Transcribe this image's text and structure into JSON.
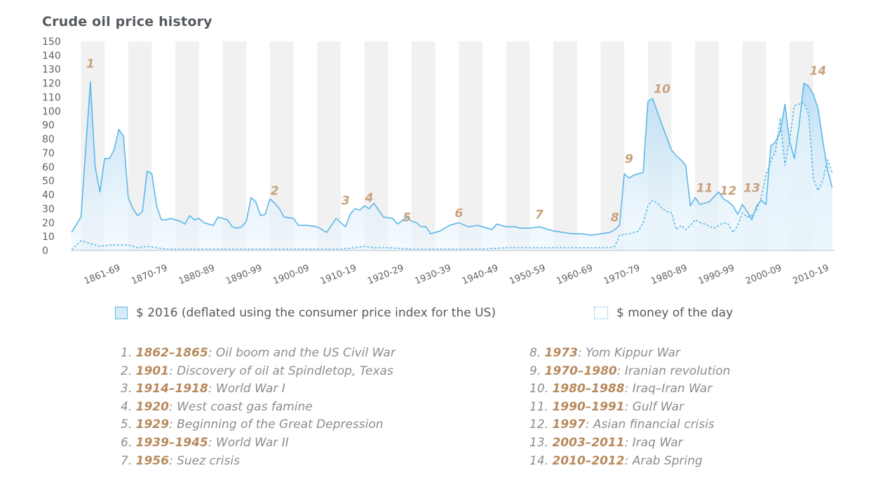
{
  "title": "Crude oil price history",
  "chart_data": {
    "type": "area",
    "title": "Crude oil price history",
    "ylim": [
      0,
      150
    ],
    "yticks": [
      0,
      10,
      20,
      30,
      40,
      50,
      60,
      70,
      80,
      90,
      100,
      110,
      120,
      130,
      140,
      150
    ],
    "xlim": [
      1858,
      2019.5
    ],
    "grid": "alternating vertical bands per 5 years",
    "decades": [
      {
        "label": "1861-69",
        "center": 1865
      },
      {
        "label": "1870-79",
        "center": 1875
      },
      {
        "label": "1880-89",
        "center": 1885
      },
      {
        "label": "1890-99",
        "center": 1895
      },
      {
        "label": "1900-09",
        "center": 1905
      },
      {
        "label": "1910-19",
        "center": 1915
      },
      {
        "label": "1920-29",
        "center": 1925
      },
      {
        "label": "1930-39",
        "center": 1935
      },
      {
        "label": "1940-49",
        "center": 1945
      },
      {
        "label": "1950-59",
        "center": 1955
      },
      {
        "label": "1960-69",
        "center": 1965
      },
      {
        "label": "1970-79",
        "center": 1975
      },
      {
        "label": "1980-89",
        "center": 1985
      },
      {
        "label": "1990-99",
        "center": 1995
      },
      {
        "label": "2000-09",
        "center": 2005
      },
      {
        "label": "2010-19",
        "center": 2015
      }
    ],
    "series": [
      {
        "name": "$ 2016 (deflated using the consumer price index for the US)",
        "color": "#5eb8e8",
        "fill": "#d6ebf8",
        "style": "solid",
        "x": [
          1858,
          1860,
          1862,
          1863,
          1864,
          1865,
          1866,
          1867,
          1868,
          1869,
          1870,
          1871,
          1872,
          1873,
          1874,
          1875,
          1876,
          1877,
          1878,
          1879,
          1880,
          1881,
          1882,
          1883,
          1884,
          1885,
          1886,
          1887,
          1888,
          1889,
          1890,
          1891,
          1892,
          1893,
          1894,
          1895,
          1896,
          1897,
          1898,
          1899,
          1900,
          1901,
          1902,
          1903,
          1905,
          1906,
          1908,
          1910,
          1912,
          1914,
          1916,
          1917,
          1918,
          1919,
          1920,
          1921,
          1922,
          1924,
          1926,
          1927,
          1929,
          1930,
          1931,
          1932,
          1933,
          1934,
          1936,
          1938,
          1940,
          1942,
          1944,
          1946,
          1947,
          1948,
          1950,
          1952,
          1953,
          1955,
          1957,
          1958,
          1960,
          1962,
          1964,
          1966,
          1968,
          1970,
          1972,
          1973,
          1974,
          1975,
          1976,
          1977,
          1978,
          1979,
          1980,
          1981,
          1983,
          1985,
          1986,
          1987,
          1988,
          1989,
          1990,
          1991,
          1993,
          1995,
          1996,
          1997,
          1998,
          1999,
          2000,
          2001,
          2002,
          2003,
          2004,
          2005,
          2006,
          2007,
          2008,
          2009,
          2010,
          2011,
          2012,
          2013,
          2014,
          2015,
          2016,
          2017,
          2018,
          2019
        ],
        "values": [
          13,
          24,
          121,
          60,
          42,
          66,
          66,
          72,
          87,
          82,
          38,
          30,
          25,
          28,
          57,
          55,
          32,
          22,
          22,
          23,
          22,
          21,
          19,
          25,
          22,
          23,
          20,
          19,
          18,
          24,
          23,
          22,
          17,
          16,
          17,
          21,
          38,
          35,
          25,
          26,
          37,
          34,
          30,
          24,
          23,
          18,
          18,
          17,
          13,
          23,
          17,
          26,
          30,
          29,
          32,
          30,
          34,
          24,
          23,
          19,
          24,
          21,
          20,
          17,
          17,
          12,
          14,
          18,
          20,
          17,
          18,
          16,
          15,
          19,
          17,
          17,
          16,
          16,
          17,
          16,
          14,
          13,
          12,
          12,
          11,
          12,
          13,
          15,
          18,
          55,
          52,
          54,
          55,
          56,
          107,
          109,
          90,
          72,
          68,
          65,
          61,
          32,
          38,
          33,
          35,
          42,
          37,
          35,
          32,
          26,
          33,
          28,
          22,
          32,
          36,
          33,
          75,
          78,
          85,
          105,
          78,
          66,
          90,
          120,
          118,
          112,
          102,
          79,
          58,
          45
        ]
      },
      {
        "name": "$ money of the day",
        "color": "#5eb8e8",
        "fill": "#e7f3fb",
        "style": "dashed",
        "x": [
          1858,
          1860,
          1862,
          1864,
          1866,
          1868,
          1870,
          1872,
          1874,
          1876,
          1878,
          1880,
          1885,
          1890,
          1895,
          1900,
          1905,
          1910,
          1915,
          1918,
          1920,
          1922,
          1925,
          1930,
          1935,
          1940,
          1945,
          1950,
          1955,
          1960,
          1965,
          1970,
          1972,
          1973,
          1974,
          1976,
          1978,
          1979,
          1980,
          1981,
          1982,
          1983,
          1984,
          1985,
          1986,
          1987,
          1988,
          1989,
          1990,
          1991,
          1992,
          1994,
          1996,
          1997,
          1998,
          1999,
          2000,
          2001,
          2002,
          2003,
          2004,
          2005,
          2006,
          2007,
          2008,
          2009,
          2010,
          2011,
          2012,
          2013,
          2014,
          2015,
          2016,
          2017,
          2018,
          2019
        ],
        "values": [
          0.5,
          7,
          5,
          3,
          4,
          4,
          4,
          2,
          3,
          2,
          1,
          1,
          1,
          1,
          1,
          1,
          1,
          1,
          1,
          2,
          3,
          2,
          2,
          1,
          1,
          1,
          1,
          2,
          2,
          2,
          2,
          2,
          2,
          3,
          11,
          12,
          14,
          20,
          32,
          36,
          34,
          30,
          28,
          27,
          15,
          18,
          15,
          18,
          22,
          20,
          19,
          16,
          20,
          19,
          13,
          18,
          27,
          24,
          25,
          29,
          38,
          54,
          64,
          71,
          95,
          61,
          79,
          104,
          105,
          106,
          98,
          52,
          43,
          50,
          65,
          56
        ]
      }
    ]
  },
  "event_markers": [
    {
      "n": "1",
      "x": 1862,
      "y": 131
    },
    {
      "n": "2",
      "x": 1901,
      "y": 40
    },
    {
      "n": "3",
      "x": 1916,
      "y": 33
    },
    {
      "n": "4",
      "x": 1921,
      "y": 35
    },
    {
      "n": "5",
      "x": 1929,
      "y": 21
    },
    {
      "n": "6",
      "x": 1940,
      "y": 24
    },
    {
      "n": "7",
      "x": 1957,
      "y": 23
    },
    {
      "n": "8",
      "x": 1973,
      "y": 21
    },
    {
      "n": "9",
      "x": 1976,
      "y": 63
    },
    {
      "n": "10",
      "x": 1983,
      "y": 113
    },
    {
      "n": "11",
      "x": 1992,
      "y": 42
    },
    {
      "n": "12",
      "x": 1997,
      "y": 40
    },
    {
      "n": "13",
      "x": 2002,
      "y": 42
    },
    {
      "n": "14",
      "x": 2016,
      "y": 126
    }
  ],
  "legend": {
    "solid": "$ 2016 (deflated using the consumer price index for the US)",
    "dashed": "$ money of the day"
  },
  "events": [
    {
      "num": "1.",
      "years": "1862–1865",
      "desc": ": Oil boom and the US Civil War"
    },
    {
      "num": "2.",
      "years": "1901",
      "desc": ": Discovery of oil at Spindletop, Texas"
    },
    {
      "num": "3.",
      "years": "1914–1918",
      "desc": ": World War I"
    },
    {
      "num": "4.",
      "years": "1920",
      "desc": ": West coast gas famine"
    },
    {
      "num": "5.",
      "years": "1929",
      "desc": ": Beginning of the Great Depression"
    },
    {
      "num": "6.",
      "years": "1939–1945",
      "desc": ": World War II"
    },
    {
      "num": "7.",
      "years": "1956",
      "desc": ": Suez crisis"
    },
    {
      "num": "8.",
      "years": "1973",
      "desc": ": Yom Kippur War"
    },
    {
      "num": "9.",
      "years": "1970–1980",
      "desc": ": Iranian revolution"
    },
    {
      "num": "10.",
      "years": "1980–1988",
      "desc": ": Iraq–Iran War"
    },
    {
      "num": "11.",
      "years": "1990–1991",
      "desc": ": Gulf War"
    },
    {
      "num": "12.",
      "years": "1997",
      "desc": ": Asian financial crisis"
    },
    {
      "num": "13.",
      "years": "2003–2011",
      "desc": ": Iraq War"
    },
    {
      "num": "14.",
      "years": "2010–2012",
      "desc": ": Arab Spring"
    }
  ]
}
